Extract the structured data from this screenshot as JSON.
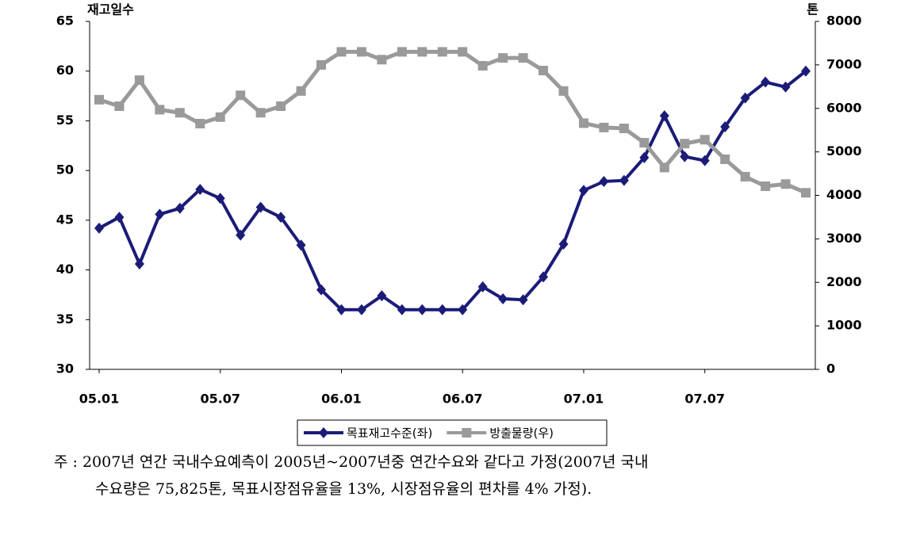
{
  "chart_data": {
    "type": "line",
    "y_axis_title": "재고일수",
    "y2_axis_title": "톤",
    "categories": [
      "05.01",
      null,
      null,
      null,
      null,
      null,
      "05.07",
      null,
      null,
      null,
      null,
      null,
      "06.01",
      null,
      null,
      null,
      null,
      null,
      "06.07",
      null,
      null,
      null,
      null,
      null,
      "07.01",
      null,
      null,
      null,
      null,
      null,
      "07.07",
      null,
      null,
      null,
      null,
      null
    ],
    "series": [
      {
        "name": "목표재고수준(좌)",
        "color": "#1b1b78",
        "marker": "diamond",
        "values": [
          44.2,
          45.3,
          40.6,
          45.6,
          46.2,
          48.1,
          47.2,
          43.5,
          46.3,
          45.3,
          42.5,
          38.0,
          36.0,
          36.0,
          37.4,
          36.0,
          36.0,
          36.0,
          36.0,
          38.3,
          37.1,
          37.0,
          39.3,
          42.6,
          48.0,
          48.9,
          49.0,
          51.3,
          55.5,
          51.4,
          51.0,
          54.4,
          57.3,
          58.9,
          58.4,
          60.0
        ]
      },
      {
        "name": "방출물량(우)",
        "color": "#9a9a9a",
        "marker": "square",
        "axis": "y2",
        "values": [
          6200,
          6050,
          6650,
          5970,
          5900,
          5650,
          5800,
          6300,
          5900,
          6050,
          6400,
          7000,
          7300,
          7300,
          7120,
          7300,
          7300,
          7300,
          7300,
          6980,
          7160,
          7160,
          6870,
          6400,
          5660,
          5560,
          5540,
          5210,
          4640,
          5190,
          5280,
          4830,
          4430,
          4210,
          4260,
          4060
        ]
      }
    ],
    "ylim": [
      30,
      65
    ],
    "yticks": [
      30,
      35,
      40,
      45,
      50,
      55,
      60,
      65
    ],
    "y2lim": [
      0,
      8000
    ],
    "y2ticks": [
      0,
      1000,
      2000,
      3000,
      4000,
      5000,
      6000,
      7000,
      8000
    ],
    "grid": false,
    "legend": "bottom"
  },
  "note": [
    "주 : 2007년 연간 국내수요예측이 2005년~2007년중 연간수요와 같다고 가정(2007년 국내",
    "수요량은 75,825톤, 목표시장점유율을 13%, 시장점유율의 편차를 4% 가정)."
  ]
}
